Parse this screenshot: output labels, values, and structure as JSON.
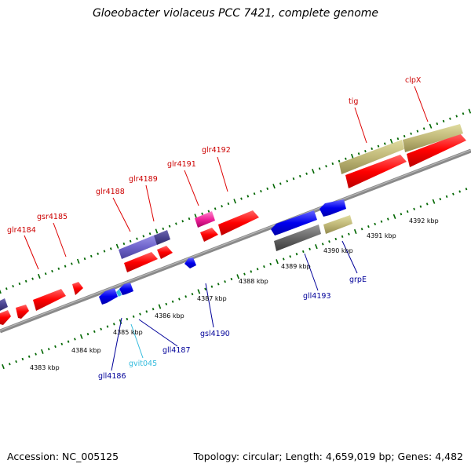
{
  "title": "Gloeobacter violaceus PCC 7421, complete genome",
  "accession": "Accession: NC_005125",
  "topology": "Topology: circular; Length: 4,659,019 bp; Genes: 4,482",
  "colors": {
    "forward_gene": "#ff0000",
    "reverse_gene": "#0000ff",
    "label_forward": "#cc0000",
    "label_reverse": "#000099",
    "label_rna": "#33bbdd",
    "tick": "#006600",
    "backbone": "#808080"
  },
  "kbp_labels": [
    "4383 kbp",
    "4384 kbp",
    "4385 kbp",
    "4386 kbp",
    "4387 kbp",
    "4388 kbp",
    "4389 kbp",
    "4390 kbp",
    "4391 kbp",
    "4392 kbp"
  ],
  "gene_labels": [
    {
      "text": "glr4184",
      "strand": "forward"
    },
    {
      "text": "gsr4185",
      "strand": "forward"
    },
    {
      "text": "glr4188",
      "strand": "forward"
    },
    {
      "text": "glr4189",
      "strand": "forward"
    },
    {
      "text": "glr4191",
      "strand": "forward"
    },
    {
      "text": "glr4192",
      "strand": "forward"
    },
    {
      "text": "tig",
      "strand": "forward"
    },
    {
      "text": "clpX",
      "strand": "forward"
    },
    {
      "text": "gll4186",
      "strand": "reverse"
    },
    {
      "text": "gvit045",
      "strand": "rna"
    },
    {
      "text": "gll4187",
      "strand": "reverse"
    },
    {
      "text": "gsl4190",
      "strand": "reverse"
    },
    {
      "text": "gll4193",
      "strand": "reverse"
    },
    {
      "text": "grpE",
      "strand": "reverse"
    }
  ]
}
